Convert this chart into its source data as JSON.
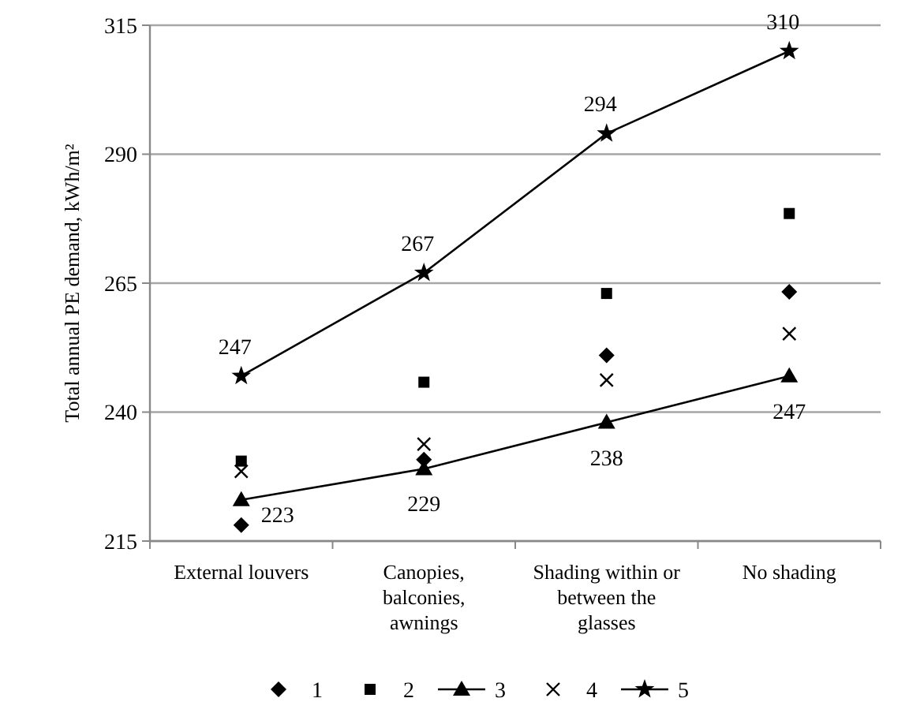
{
  "chart_data": {
    "type": "line",
    "ylabel": "Total annual PE demand, kWh/m²",
    "categories": [
      "External louvers",
      "Canopies, balconies, awnings",
      "Shading within or between the glasses",
      "No shading"
    ],
    "ylim": [
      215,
      315
    ],
    "yticks": [
      215,
      240,
      265,
      290,
      315
    ],
    "grid": "y",
    "legend": "bottom",
    "series": [
      {
        "name": "1",
        "type": "scatter",
        "marker": "diamond",
        "color": "#000000",
        "values": [
          218.1,
          230.8,
          251,
          263.3
        ]
      },
      {
        "name": "2",
        "type": "scatter",
        "marker": "square",
        "color": "#000000",
        "values": [
          230.5,
          245.8,
          263,
          278.5
        ]
      },
      {
        "name": "3",
        "marker": "triangle",
        "color": "#000000",
        "values": [
          223,
          229,
          238,
          247
        ],
        "value_labels": [
          "223",
          "229",
          "238",
          "247"
        ]
      },
      {
        "name": "4",
        "type": "scatter",
        "marker": "cross",
        "color": "#000000",
        "values": [
          228.5,
          233.8,
          246.2,
          255.2
        ]
      },
      {
        "name": "5",
        "marker": "star",
        "color": "#000000",
        "values": [
          247,
          267,
          294,
          310
        ],
        "value_labels": [
          "247",
          "267",
          "294",
          "310"
        ]
      }
    ]
  }
}
